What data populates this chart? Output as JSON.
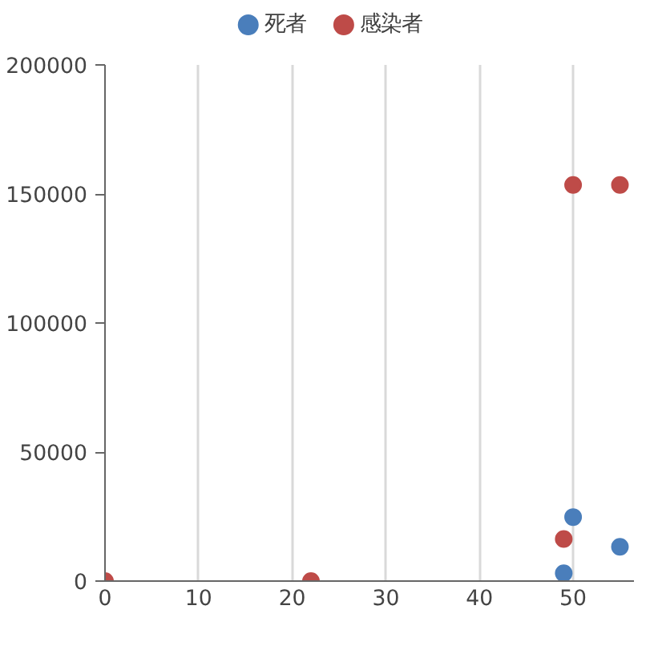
{
  "chart_data": {
    "type": "scatter",
    "xlim": [
      0,
      56.5
    ],
    "ylim": [
      0,
      200000
    ],
    "xticks": [
      0,
      10,
      20,
      30,
      40,
      50
    ],
    "yticks": [
      0,
      50000,
      100000,
      150000,
      200000
    ],
    "grid": "x",
    "legend": "top",
    "marker": "circle",
    "series": [
      {
        "name": "死者",
        "color": "#4a7ebb",
        "x": [
          49,
          50,
          55
        ],
        "values": [
          3000,
          24800,
          13300
        ]
      },
      {
        "name": "感染者",
        "color": "#be4b48",
        "x": [
          0,
          22,
          49,
          50,
          55
        ],
        "values": [
          0,
          0,
          16300,
          153500,
          153500
        ]
      }
    ]
  }
}
